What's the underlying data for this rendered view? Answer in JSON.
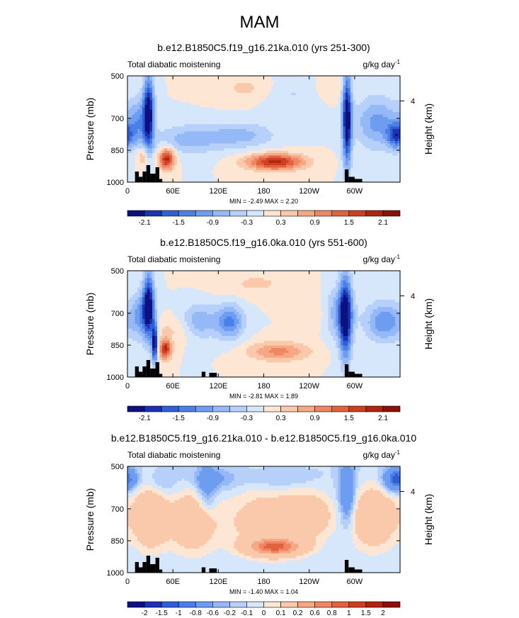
{
  "title": "MAM",
  "chart_data": [
    {
      "type": "heatmap",
      "title": "b.e12.B1850C5.f19_g16.21ka.010 (yrs 251-300)",
      "subtitle_left": "Total diabatic moistening",
      "units": "g/kg day",
      "units_exp": "-1",
      "ylabel": "Pressure (mb)",
      "ylabel_right": "Height (km)",
      "xticks": [
        "0",
        "60E",
        "120E",
        "180",
        "120W",
        "60W"
      ],
      "xtick_lons": [
        0,
        60,
        120,
        180,
        240,
        300
      ],
      "xlim": [
        0,
        360
      ],
      "yticks": [
        "500",
        "700",
        "850",
        "1000"
      ],
      "ytick_values": [
        500,
        700,
        850,
        1000
      ],
      "ylim": [
        500,
        1000
      ],
      "yticks_right": [
        "4"
      ],
      "height_tick_pressure": 618,
      "min": -2.49,
      "max": 2.2,
      "stats_text": "MIN = -2.49  MAX =  2.20",
      "colorbar_labels": [
        "-2.1",
        "-1.5",
        "-0.9",
        "-0.3",
        "0.3",
        "0.9",
        "1.5",
        "2.1"
      ],
      "colorbar_levels": [
        -2.4,
        -2.1,
        -1.8,
        -1.5,
        -1.2,
        -0.9,
        -0.6,
        -0.3,
        0,
        0.3,
        0.6,
        0.9,
        1.2,
        1.5,
        1.8,
        2.1,
        2.4
      ],
      "features": [
        {
          "lon": 15,
          "p": 720,
          "rlon": 14,
          "rp": 110,
          "value": -1.0
        },
        {
          "lon": 28,
          "p": 670,
          "rlon": 7,
          "rp": 170,
          "value": -2.3
        },
        {
          "lon": 20,
          "p": 880,
          "rlon": 8,
          "rp": 45,
          "value": 0.7
        },
        {
          "lon": 52,
          "p": 890,
          "rlon": 10,
          "rp": 50,
          "value": 2.0
        },
        {
          "lon": 80,
          "p": 800,
          "rlon": 45,
          "rp": 70,
          "value": -0.7
        },
        {
          "lon": 150,
          "p": 780,
          "rlon": 45,
          "rp": 60,
          "value": -0.7
        },
        {
          "lon": 195,
          "p": 905,
          "rlon": 38,
          "rp": 38,
          "value": 1.9
        },
        {
          "lon": 160,
          "p": 560,
          "rlon": 40,
          "rp": 60,
          "value": 0.4
        },
        {
          "lon": 215,
          "p": 580,
          "rlon": 40,
          "rp": 80,
          "value": -0.35
        },
        {
          "lon": 270,
          "p": 560,
          "rlon": 25,
          "rp": 60,
          "value": 0.3
        },
        {
          "lon": 290,
          "p": 700,
          "rlon": 6,
          "rp": 220,
          "value": -2.5
        },
        {
          "lon": 330,
          "p": 720,
          "rlon": 30,
          "rp": 120,
          "value": -1.0
        },
        {
          "lon": 355,
          "p": 780,
          "rlon": 12,
          "rp": 60,
          "value": -1.6
        }
      ],
      "topography": [
        {
          "lon0": 10,
          "lon1": 15,
          "p": 950
        },
        {
          "lon0": 15,
          "lon1": 20,
          "p": 975
        },
        {
          "lon0": 20,
          "lon1": 25,
          "p": 950
        },
        {
          "lon0": 25,
          "lon1": 30,
          "p": 920
        },
        {
          "lon0": 30,
          "lon1": 37,
          "p": 960
        },
        {
          "lon0": 37,
          "lon1": 42,
          "p": 930
        },
        {
          "lon0": 42,
          "lon1": 46,
          "p": 985
        },
        {
          "lon0": 287,
          "lon1": 292,
          "p": 940
        },
        {
          "lon0": 292,
          "lon1": 300,
          "p": 975
        },
        {
          "lon0": 300,
          "lon1": 310,
          "p": 985
        }
      ]
    },
    {
      "type": "heatmap",
      "title": "b.e12.B1850C5.f19_g16.0ka.010 (yrs 551-600)",
      "subtitle_left": "Total diabatic moistening",
      "units": "g/kg day",
      "units_exp": "-1",
      "ylabel": "Pressure (mb)",
      "ylabel_right": "Height (km)",
      "xticks": [
        "0",
        "60E",
        "120E",
        "180",
        "120W",
        "60W"
      ],
      "xtick_lons": [
        0,
        60,
        120,
        180,
        240,
        300
      ],
      "xlim": [
        0,
        360
      ],
      "yticks": [
        "500",
        "700",
        "850",
        "1000"
      ],
      "ytick_values": [
        500,
        700,
        850,
        1000
      ],
      "ylim": [
        500,
        1000
      ],
      "yticks_right": [
        "4"
      ],
      "height_tick_pressure": 618,
      "min": -2.81,
      "max": 1.89,
      "stats_text": "MIN = -2.81  MAX =  1.89",
      "colorbar_labels": [
        "-2.1",
        "-1.5",
        "-0.9",
        "-0.3",
        "0.3",
        "0.9",
        "1.5",
        "2.1"
      ],
      "colorbar_levels": [
        -2.4,
        -2.1,
        -1.8,
        -1.5,
        -1.2,
        -0.9,
        -0.6,
        -0.3,
        0,
        0.3,
        0.6,
        0.9,
        1.2,
        1.5,
        1.8,
        2.1,
        2.4
      ],
      "features": [
        {
          "lon": 20,
          "p": 710,
          "rlon": 14,
          "rp": 110,
          "value": -1.1
        },
        {
          "lon": 28,
          "p": 660,
          "rlon": 7,
          "rp": 150,
          "value": -2.2
        },
        {
          "lon": 36,
          "p": 840,
          "rlon": 4,
          "rp": 90,
          "value": -2.4
        },
        {
          "lon": 50,
          "p": 870,
          "rlon": 8,
          "rp": 45,
          "value": 1.9
        },
        {
          "lon": 60,
          "p": 780,
          "rlon": 35,
          "rp": 60,
          "value": 0.35
        },
        {
          "lon": 95,
          "p": 740,
          "rlon": 22,
          "rp": 80,
          "value": -0.9
        },
        {
          "lon": 135,
          "p": 740,
          "rlon": 18,
          "rp": 80,
          "value": -1.3
        },
        {
          "lon": 200,
          "p": 880,
          "rlon": 40,
          "rp": 45,
          "value": 1.0
        },
        {
          "lon": 170,
          "p": 560,
          "rlon": 50,
          "rp": 60,
          "value": 0.35
        },
        {
          "lon": 245,
          "p": 700,
          "rlon": 20,
          "rp": 80,
          "value": 0.25
        },
        {
          "lon": 288,
          "p": 720,
          "rlon": 8,
          "rp": 200,
          "value": -2.2
        },
        {
          "lon": 280,
          "p": 700,
          "rlon": 18,
          "rp": 120,
          "value": -0.9
        },
        {
          "lon": 340,
          "p": 740,
          "rlon": 25,
          "rp": 90,
          "value": -1.2
        }
      ],
      "topography": [
        {
          "lon0": 10,
          "lon1": 15,
          "p": 950
        },
        {
          "lon0": 15,
          "lon1": 20,
          "p": 975
        },
        {
          "lon0": 20,
          "lon1": 25,
          "p": 950
        },
        {
          "lon0": 25,
          "lon1": 30,
          "p": 920
        },
        {
          "lon0": 30,
          "lon1": 37,
          "p": 960
        },
        {
          "lon0": 37,
          "lon1": 42,
          "p": 930
        },
        {
          "lon0": 42,
          "lon1": 46,
          "p": 985
        },
        {
          "lon0": 98,
          "lon1": 103,
          "p": 975
        },
        {
          "lon0": 108,
          "lon1": 118,
          "p": 980
        },
        {
          "lon0": 287,
          "lon1": 292,
          "p": 940
        },
        {
          "lon0": 292,
          "lon1": 300,
          "p": 975
        },
        {
          "lon0": 300,
          "lon1": 310,
          "p": 985
        }
      ]
    },
    {
      "type": "heatmap",
      "title": "b.e12.B1850C5.f19_g16.21ka.010 - b.e12.B1850C5.f19_g16.0ka.010",
      "subtitle_left": "Total diabatic moistening",
      "units": "g/kg day",
      "units_exp": "-1",
      "ylabel": "Pressure (mb)",
      "ylabel_right": "Height (km)",
      "xticks": [
        "0",
        "60E",
        "120E",
        "180",
        "120W",
        "60W"
      ],
      "xtick_lons": [
        0,
        60,
        120,
        180,
        240,
        300
      ],
      "xlim": [
        0,
        360
      ],
      "yticks": [
        "500",
        "700",
        "850",
        "1000"
      ],
      "ytick_values": [
        500,
        700,
        850,
        1000
      ],
      "ylim": [
        500,
        1000
      ],
      "yticks_right": [
        "4"
      ],
      "height_tick_pressure": 618,
      "min": -1.4,
      "max": 1.04,
      "stats_text": "MIN = -1.40  MAX =  1.04",
      "colorbar_labels": [
        "-2",
        "-1.5",
        "-1",
        "-0.8",
        "-0.6",
        "-0.2",
        "-0.1",
        "0",
        "0.1",
        "0.2",
        "0.6",
        "0.8",
        "1",
        "1.5",
        "2"
      ],
      "colorbar_levels": [
        -2,
        -1.5,
        -1,
        -0.8,
        -0.6,
        -0.2,
        -0.1,
        0,
        0.1,
        0.2,
        0.6,
        0.8,
        1,
        1.5,
        2
      ],
      "features": [
        {
          "lon": 30,
          "p": 740,
          "rlon": 22,
          "rp": 140,
          "value": 0.55
        },
        {
          "lon": 85,
          "p": 760,
          "rlon": 30,
          "rp": 140,
          "value": 0.45
        },
        {
          "lon": 185,
          "p": 760,
          "rlon": 55,
          "rp": 150,
          "value": 0.35
        },
        {
          "lon": 195,
          "p": 880,
          "rlon": 35,
          "rp": 40,
          "value": 0.95
        },
        {
          "lon": 240,
          "p": 730,
          "rlon": 30,
          "rp": 100,
          "value": 0.35
        },
        {
          "lon": 325,
          "p": 740,
          "rlon": 30,
          "rp": 140,
          "value": 0.5
        },
        {
          "lon": 105,
          "p": 600,
          "rlon": 12,
          "rp": 120,
          "value": -0.35
        },
        {
          "lon": 115,
          "p": 560,
          "rlon": 30,
          "rp": 50,
          "value": -0.25
        },
        {
          "lon": 290,
          "p": 620,
          "rlon": 10,
          "rp": 140,
          "value": -0.6
        },
        {
          "lon": 355,
          "p": 560,
          "rlon": 15,
          "rp": 50,
          "value": -1.0
        },
        {
          "lon": 45,
          "p": 580,
          "rlon": 20,
          "rp": 60,
          "value": -0.15
        },
        {
          "lon": 200,
          "p": 560,
          "rlon": 40,
          "rp": 40,
          "value": -0.15
        }
      ],
      "topography": [
        {
          "lon0": 10,
          "lon1": 15,
          "p": 950
        },
        {
          "lon0": 15,
          "lon1": 20,
          "p": 975
        },
        {
          "lon0": 20,
          "lon1": 25,
          "p": 950
        },
        {
          "lon0": 25,
          "lon1": 30,
          "p": 920
        },
        {
          "lon0": 30,
          "lon1": 37,
          "p": 960
        },
        {
          "lon0": 37,
          "lon1": 42,
          "p": 930
        },
        {
          "lon0": 42,
          "lon1": 46,
          "p": 985
        },
        {
          "lon0": 98,
          "lon1": 103,
          "p": 975
        },
        {
          "lon0": 108,
          "lon1": 118,
          "p": 980
        },
        {
          "lon0": 287,
          "lon1": 292,
          "p": 940
        },
        {
          "lon0": 292,
          "lon1": 300,
          "p": 975
        },
        {
          "lon0": 300,
          "lon1": 310,
          "p": 985
        }
      ]
    }
  ],
  "colormap": [
    "#0d1180",
    "#1b32b4",
    "#2f5ed6",
    "#4b7fe8",
    "#6d9cf0",
    "#95b9f7",
    "#b7d0f9",
    "#d6e6fb",
    "#fde6d4",
    "#fac9ab",
    "#f5a884",
    "#ee8663",
    "#e2623f",
    "#cd3f22",
    "#b0230f",
    "#8e0f08"
  ]
}
